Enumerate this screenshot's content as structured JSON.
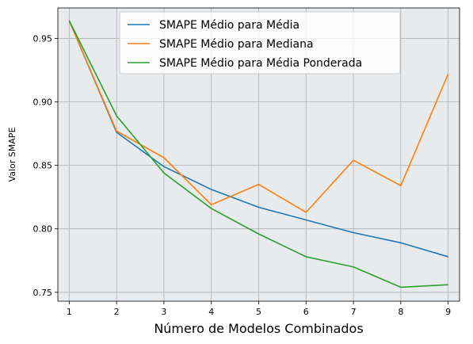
{
  "chart_data": {
    "type": "line",
    "title": "",
    "xlabel": "Número de Modelos Combinados",
    "ylabel": "Valor SMAPE",
    "x": [
      1,
      2,
      3,
      4,
      5,
      6,
      7,
      8,
      9
    ],
    "xlim": [
      0.76,
      9.24
    ],
    "ylim": [
      0.743,
      0.974
    ],
    "xticks": [
      1,
      2,
      3,
      4,
      5,
      6,
      7,
      8,
      9
    ],
    "yticks": [
      0.75,
      0.8,
      0.85,
      0.9,
      0.95
    ],
    "ytick_labels": [
      "0.75",
      "0.80",
      "0.85",
      "0.90",
      "0.95"
    ],
    "grid": true,
    "legend_position": "top-center",
    "background_color": "#e8ebee",
    "series": [
      {
        "name": "SMAPE Médio para Média",
        "color": "#1f77b4",
        "values": [
          0.964,
          0.876,
          0.849,
          0.831,
          0.817,
          0.807,
          0.797,
          0.789,
          0.778
        ]
      },
      {
        "name": "SMAPE Médio para Mediana",
        "color": "#ff7f0e",
        "values": [
          0.964,
          0.877,
          0.856,
          0.819,
          0.835,
          0.813,
          0.854,
          0.834,
          0.922
        ]
      },
      {
        "name": "SMAPE Médio para Média Ponderada",
        "color": "#2ca02c",
        "values": [
          0.964,
          0.889,
          0.844,
          0.816,
          0.796,
          0.778,
          0.77,
          0.754,
          0.756
        ]
      }
    ]
  }
}
